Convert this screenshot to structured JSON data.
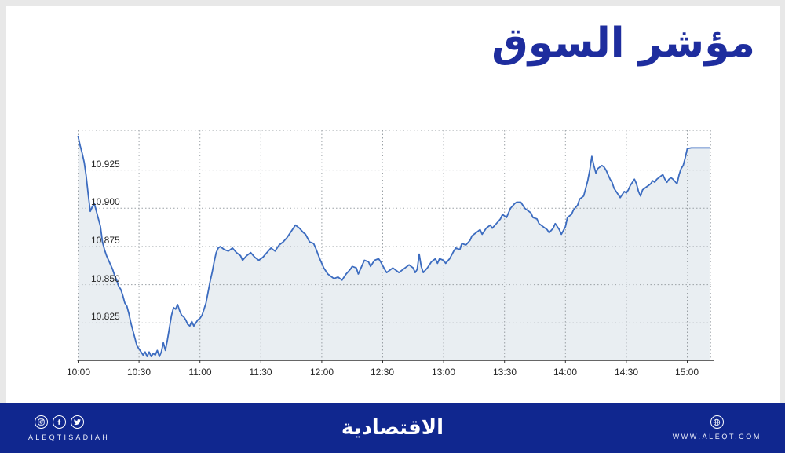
{
  "header": {
    "title": "مؤشر السوق",
    "title_color": "#1e2d9e"
  },
  "chart_data": {
    "type": "area",
    "title": "مؤشر السوق",
    "series_name": "مؤشر السوق (market index intraday)",
    "legend": "none",
    "grid": "dotted",
    "x_axis": {
      "tick_labels": [
        "10:00",
        "10:30",
        "11:00",
        "11:30",
        "12:00",
        "12:30",
        "13:00",
        "13:30",
        "14:00",
        "14:30",
        "15:00"
      ],
      "tick_minutes": [
        0,
        30,
        60,
        90,
        120,
        150,
        180,
        210,
        240,
        270,
        300
      ],
      "xlim_minutes": [
        0,
        311.5
      ]
    },
    "y_axis": {
      "tick_labels": [
        "10.925",
        "10.900",
        "10.875",
        "10.850",
        "10.825"
      ],
      "tick_values": [
        10.925,
        10.9,
        10.875,
        10.85,
        10.825
      ],
      "ylim": [
        10.8005,
        10.951
      ]
    },
    "colors": {
      "line": "#3c6cc0",
      "fill": "#e9eef2",
      "grid": "#9aa0a5",
      "axis": "#333333"
    },
    "series": [
      {
        "name": "market-index",
        "points": [
          [
            0,
            10.947
          ],
          [
            1,
            10.941
          ],
          [
            2,
            10.936
          ],
          [
            3,
            10.93
          ],
          [
            4,
            10.921
          ],
          [
            5,
            10.909
          ],
          [
            6,
            10.898
          ],
          [
            7,
            10.901
          ],
          [
            8,
            10.903
          ],
          [
            9,
            10.898
          ],
          [
            10,
            10.893
          ],
          [
            11,
            10.888
          ],
          [
            12,
            10.878
          ],
          [
            13,
            10.873
          ],
          [
            14,
            10.869
          ],
          [
            15,
            10.866
          ],
          [
            16,
            10.863
          ],
          [
            17,
            10.86
          ],
          [
            18,
            10.856
          ],
          [
            19,
            10.853
          ],
          [
            20,
            10.849
          ],
          [
            21,
            10.847
          ],
          [
            22,
            10.843
          ],
          [
            23,
            10.838
          ],
          [
            24,
            10.836
          ],
          [
            25,
            10.831
          ],
          [
            26,
            10.825
          ],
          [
            27,
            10.82
          ],
          [
            28,
            10.815
          ],
          [
            29,
            10.81
          ],
          [
            30,
            10.808
          ],
          [
            31,
            10.806
          ],
          [
            32,
            10.804
          ],
          [
            33,
            10.806
          ],
          [
            34,
            10.803
          ],
          [
            35,
            10.806
          ],
          [
            36,
            10.803
          ],
          [
            37,
            10.805
          ],
          [
            38,
            10.804
          ],
          [
            39,
            10.807
          ],
          [
            40,
            10.803
          ],
          [
            41,
            10.806
          ],
          [
            42,
            10.812
          ],
          [
            43,
            10.807
          ],
          [
            44,
            10.814
          ],
          [
            45,
            10.822
          ],
          [
            46,
            10.83
          ],
          [
            47,
            10.835
          ],
          [
            48,
            10.834
          ],
          [
            49,
            10.837
          ],
          [
            50,
            10.833
          ],
          [
            51,
            10.83
          ],
          [
            52,
            10.829
          ],
          [
            53,
            10.827
          ],
          [
            54,
            10.824
          ],
          [
            55,
            10.823
          ],
          [
            56,
            10.826
          ],
          [
            57,
            10.823
          ],
          [
            58,
            10.825
          ],
          [
            59,
            10.827
          ],
          [
            60,
            10.828
          ],
          [
            61,
            10.83
          ],
          [
            62,
            10.834
          ],
          [
            63,
            10.838
          ],
          [
            64,
            10.845
          ],
          [
            65,
            10.852
          ],
          [
            66,
            10.858
          ],
          [
            67,
            10.865
          ],
          [
            68,
            10.871
          ],
          [
            69,
            10.874
          ],
          [
            70,
            10.875
          ],
          [
            72,
            10.873
          ],
          [
            74,
            10.872
          ],
          [
            76,
            10.874
          ],
          [
            78,
            10.871
          ],
          [
            80,
            10.869
          ],
          [
            81,
            10.866
          ],
          [
            83,
            10.869
          ],
          [
            85,
            10.871
          ],
          [
            87,
            10.868
          ],
          [
            89,
            10.866
          ],
          [
            91,
            10.868
          ],
          [
            93,
            10.871
          ],
          [
            95,
            10.874
          ],
          [
            97,
            10.872
          ],
          [
            99,
            10.876
          ],
          [
            101,
            10.878
          ],
          [
            103,
            10.881
          ],
          [
            105,
            10.885
          ],
          [
            106,
            10.887
          ],
          [
            107,
            10.889
          ],
          [
            109,
            10.887
          ],
          [
            111,
            10.884
          ],
          [
            112,
            10.883
          ],
          [
            114,
            10.878
          ],
          [
            116,
            10.877
          ],
          [
            117,
            10.874
          ],
          [
            119,
            10.867
          ],
          [
            121,
            10.861
          ],
          [
            123,
            10.857
          ],
          [
            125,
            10.855
          ],
          [
            126,
            10.854
          ],
          [
            128,
            10.855
          ],
          [
            130,
            10.853
          ],
          [
            132,
            10.857
          ],
          [
            134,
            10.86
          ],
          [
            135,
            10.862
          ],
          [
            137,
            10.861
          ],
          [
            138,
            10.857
          ],
          [
            140,
            10.863
          ],
          [
            141,
            10.866
          ],
          [
            143,
            10.865
          ],
          [
            144,
            10.862
          ],
          [
            146,
            10.866
          ],
          [
            148,
            10.867
          ],
          [
            149,
            10.865
          ],
          [
            151,
            10.86
          ],
          [
            152,
            10.858
          ],
          [
            154,
            10.86
          ],
          [
            155,
            10.861
          ],
          [
            157,
            10.859
          ],
          [
            158,
            10.858
          ],
          [
            160,
            10.86
          ],
          [
            162,
            10.862
          ],
          [
            163,
            10.863
          ],
          [
            165,
            10.861
          ],
          [
            166,
            10.858
          ],
          [
            167,
            10.86
          ],
          [
            168,
            10.87
          ],
          [
            169,
            10.862
          ],
          [
            170,
            10.858
          ],
          [
            172,
            10.861
          ],
          [
            174,
            10.865
          ],
          [
            176,
            10.867
          ],
          [
            177,
            10.864
          ],
          [
            178,
            10.867
          ],
          [
            180,
            10.866
          ],
          [
            181,
            10.864
          ],
          [
            183,
            10.867
          ],
          [
            185,
            10.872
          ],
          [
            186,
            10.874
          ],
          [
            188,
            10.873
          ],
          [
            189,
            10.877
          ],
          [
            191,
            10.876
          ],
          [
            193,
            10.879
          ],
          [
            194,
            10.882
          ],
          [
            196,
            10.884
          ],
          [
            198,
            10.886
          ],
          [
            199,
            10.883
          ],
          [
            201,
            10.887
          ],
          [
            203,
            10.889
          ],
          [
            204,
            10.887
          ],
          [
            206,
            10.89
          ],
          [
            208,
            10.893
          ],
          [
            209,
            10.896
          ],
          [
            211,
            10.894
          ],
          [
            212,
            10.897
          ],
          [
            213,
            10.9
          ],
          [
            215,
            10.903
          ],
          [
            216,
            10.904
          ],
          [
            218,
            10.904
          ],
          [
            220,
            10.9
          ],
          [
            222,
            10.898
          ],
          [
            223,
            10.897
          ],
          [
            224,
            10.894
          ],
          [
            226,
            10.893
          ],
          [
            227,
            10.89
          ],
          [
            229,
            10.888
          ],
          [
            231,
            10.886
          ],
          [
            232,
            10.884
          ],
          [
            234,
            10.887
          ],
          [
            235,
            10.89
          ],
          [
            237,
            10.886
          ],
          [
            238,
            10.883
          ],
          [
            240,
            10.888
          ],
          [
            241,
            10.894
          ],
          [
            243,
            10.896
          ],
          [
            244,
            10.899
          ],
          [
            246,
            10.902
          ],
          [
            247,
            10.906
          ],
          [
            249,
            10.908
          ],
          [
            250,
            10.913
          ],
          [
            251,
            10.918
          ],
          [
            252,
            10.925
          ],
          [
            253,
            10.934
          ],
          [
            254,
            10.928
          ],
          [
            255,
            10.923
          ],
          [
            256,
            10.926
          ],
          [
            258,
            10.928
          ],
          [
            259,
            10.927
          ],
          [
            260,
            10.925
          ],
          [
            261,
            10.922
          ],
          [
            262,
            10.919
          ],
          [
            263,
            10.917
          ],
          [
            264,
            10.913
          ],
          [
            266,
            10.909
          ],
          [
            267,
            10.907
          ],
          [
            268,
            10.909
          ],
          [
            269,
            10.911
          ],
          [
            270,
            10.91
          ],
          [
            271,
            10.912
          ],
          [
            272,
            10.915
          ],
          [
            273,
            10.917
          ],
          [
            274,
            10.919
          ],
          [
            275,
            10.916
          ],
          [
            276,
            10.911
          ],
          [
            277,
            10.908
          ],
          [
            278,
            10.912
          ],
          [
            280,
            10.914
          ],
          [
            281,
            10.915
          ],
          [
            282,
            10.916
          ],
          [
            283,
            10.918
          ],
          [
            284,
            10.917
          ],
          [
            285,
            10.919
          ],
          [
            287,
            10.921
          ],
          [
            288,
            10.922
          ],
          [
            289,
            10.919
          ],
          [
            290,
            10.917
          ],
          [
            291,
            10.919
          ],
          [
            292,
            10.92
          ],
          [
            293,
            10.919
          ],
          [
            295,
            10.916
          ],
          [
            296,
            10.922
          ],
          [
            297,
            10.926
          ],
          [
            298,
            10.928
          ],
          [
            299,
            10.933
          ],
          [
            300,
            10.939
          ],
          [
            302,
            10.9395
          ],
          [
            305,
            10.9395
          ],
          [
            308,
            10.9395
          ],
          [
            311,
            10.9395
          ]
        ]
      }
    ]
  },
  "footer": {
    "bar_color": "#10278f",
    "handle": "ALEQTISADIAH",
    "logo_arabic": "الاقتصادية",
    "website": "WWW.ALEQT.COM"
  }
}
